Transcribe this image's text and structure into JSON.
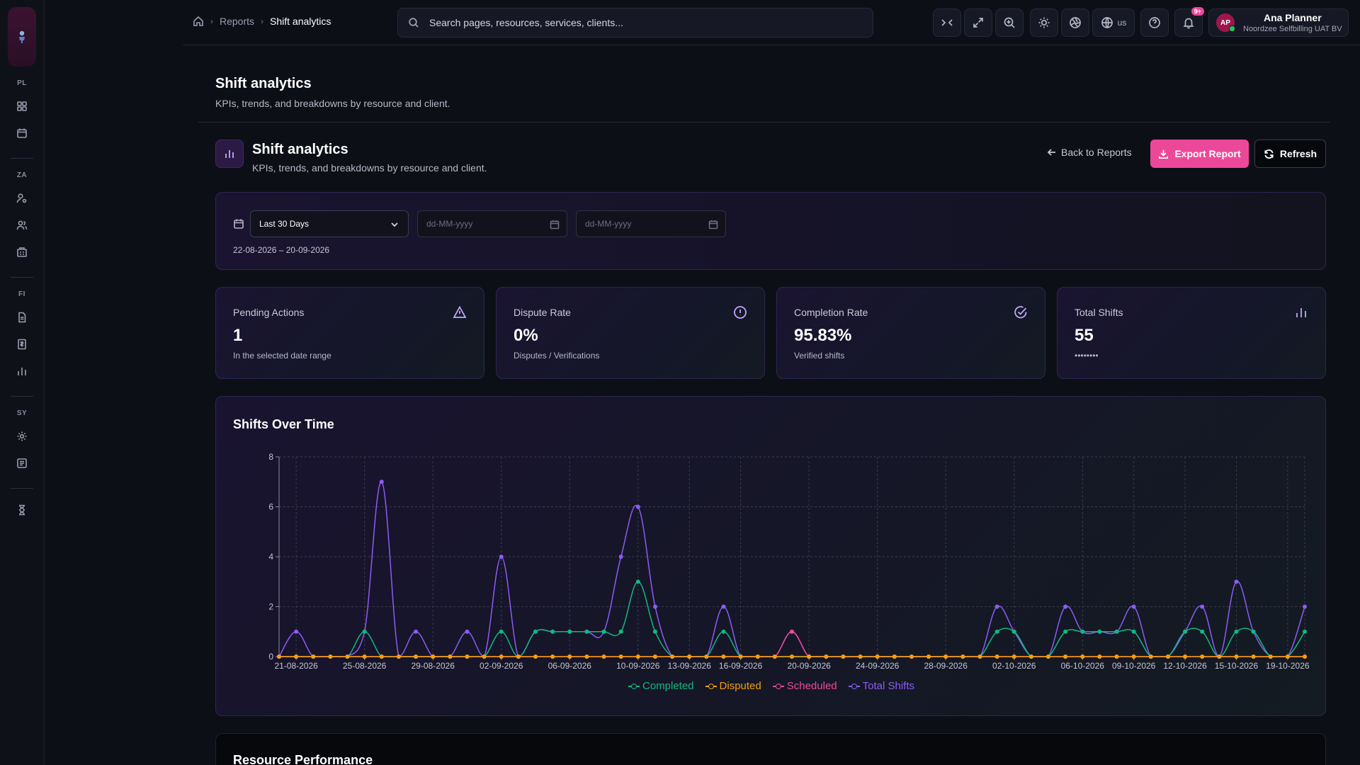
{
  "sidebar": {
    "sections": [
      "PL",
      "ZA",
      "FI",
      "SY"
    ]
  },
  "topbar": {
    "breadcrumbs": [
      "Reports",
      "Shift analytics"
    ],
    "search_placeholder": "Search pages, resources, services, clients...",
    "language": "us",
    "notification_badge": "9+",
    "user": {
      "initials": "AP",
      "name": "Ana Planner",
      "org": "Noordzee Selfbilling UAT BV"
    }
  },
  "page": {
    "title": "Shift analytics",
    "subtitle": "KPIs, trends, and breakdowns by resource and client."
  },
  "section": {
    "title": "Shift analytics",
    "subtitle": "KPIs, trends, and breakdowns by resource and client.",
    "back_label": "Back to Reports",
    "export_label": "Export Report",
    "refresh_label": "Refresh"
  },
  "filters": {
    "period": "Last 30 Days",
    "date_from_placeholder": "dd-MM-yyyy",
    "date_to_placeholder": "dd-MM-yyyy",
    "range_text": "22-08-2026 – 20-09-2026"
  },
  "kpis": [
    {
      "label": "Pending Actions",
      "value": "1",
      "sub": "In the selected date range",
      "icon": "alert-triangle-icon",
      "color": "#c4a5ff"
    },
    {
      "label": "Dispute Rate",
      "value": "0%",
      "sub": "Disputes / Verifications",
      "icon": "alert-circle-icon",
      "color": "#c4a5ff"
    },
    {
      "label": "Completion Rate",
      "value": "95.83%",
      "sub": "Verified shifts",
      "icon": "check-circle-icon",
      "color": "#c4a5ff"
    },
    {
      "label": "Total Shifts",
      "value": "55",
      "sub": "••••••••",
      "icon": "bar-chart-icon",
      "color": "#c4a5ff"
    }
  ],
  "chart_title": "Shifts Over Time",
  "chart_data": {
    "type": "line",
    "title": "Shifts Over Time",
    "x_tick_labels": [
      "21-08-2026",
      "25-08-2026",
      "29-08-2026",
      "02-09-2026",
      "06-09-2026",
      "10-09-2026",
      "13-09-2026",
      "16-09-2026",
      "20-09-2026",
      "24-09-2026",
      "28-09-2026",
      "02-10-2026",
      "06-10-2026",
      "09-10-2026",
      "12-10-2026",
      "15-10-2026",
      "19-10-2026"
    ],
    "x_tick_index": [
      1,
      5,
      9,
      13,
      17,
      21,
      24,
      27,
      31,
      35,
      39,
      43,
      47,
      50,
      53,
      56,
      59
    ],
    "point_count": 61,
    "ylim": [
      0,
      8
    ],
    "y_ticks": [
      0,
      2,
      4,
      6,
      8
    ],
    "grid": true,
    "legend_position": "bottom",
    "series": [
      {
        "name": "Completed",
        "color": "#10b981",
        "values": [
          0,
          0,
          0,
          0,
          0,
          1,
          0,
          0,
          0,
          0,
          0,
          0,
          0,
          1,
          0,
          1,
          1,
          1,
          1,
          1,
          1,
          3,
          1,
          0,
          0,
          0,
          1,
          0,
          0,
          0,
          0,
          0,
          0,
          0,
          0,
          0,
          0,
          0,
          0,
          0,
          0,
          0,
          1,
          1,
          0,
          0,
          1,
          1,
          1,
          1,
          1,
          0,
          0,
          1,
          1,
          0,
          1,
          1,
          0,
          0,
          1
        ]
      },
      {
        "name": "Disputed",
        "color": "#f59e0b",
        "values": [
          0,
          0,
          0,
          0,
          0,
          0,
          0,
          0,
          0,
          0,
          0,
          0,
          0,
          0,
          0,
          0,
          0,
          0,
          0,
          0,
          0,
          0,
          0,
          0,
          0,
          0,
          0,
          0,
          0,
          0,
          0,
          0,
          0,
          0,
          0,
          0,
          0,
          0,
          0,
          0,
          0,
          0,
          0,
          0,
          0,
          0,
          0,
          0,
          0,
          0,
          0,
          0,
          0,
          0,
          0,
          0,
          0,
          0,
          0,
          0,
          0
        ]
      },
      {
        "name": "Scheduled",
        "color": "#ec4899",
        "values": [
          0,
          0,
          0,
          0,
          0,
          0,
          0,
          0,
          0,
          0,
          0,
          0,
          0,
          0,
          0,
          0,
          0,
          0,
          0,
          0,
          0,
          0,
          0,
          0,
          0,
          0,
          0,
          0,
          0,
          0,
          1,
          0,
          0,
          0,
          0,
          0,
          0,
          0,
          0,
          0,
          0,
          0,
          0,
          0,
          0,
          0,
          0,
          0,
          0,
          0,
          0,
          0,
          0,
          0,
          0,
          0,
          0,
          0,
          0,
          0,
          0
        ]
      },
      {
        "name": "Total Shifts",
        "color": "#8b5cf6",
        "values": [
          0,
          1,
          0,
          0,
          0,
          1,
          7,
          0,
          1,
          0,
          0,
          1,
          0,
          4,
          0,
          1,
          1,
          1,
          1,
          1,
          4,
          6,
          2,
          0,
          0,
          0,
          2,
          0,
          0,
          0,
          1,
          0,
          0,
          0,
          0,
          0,
          0,
          0,
          0,
          0,
          0,
          0,
          2,
          1,
          0,
          0,
          2,
          1,
          1,
          1,
          2,
          0,
          0,
          1,
          2,
          0,
          3,
          1,
          0,
          0,
          2
        ]
      }
    ]
  },
  "next_section_title": "Resource Performance"
}
